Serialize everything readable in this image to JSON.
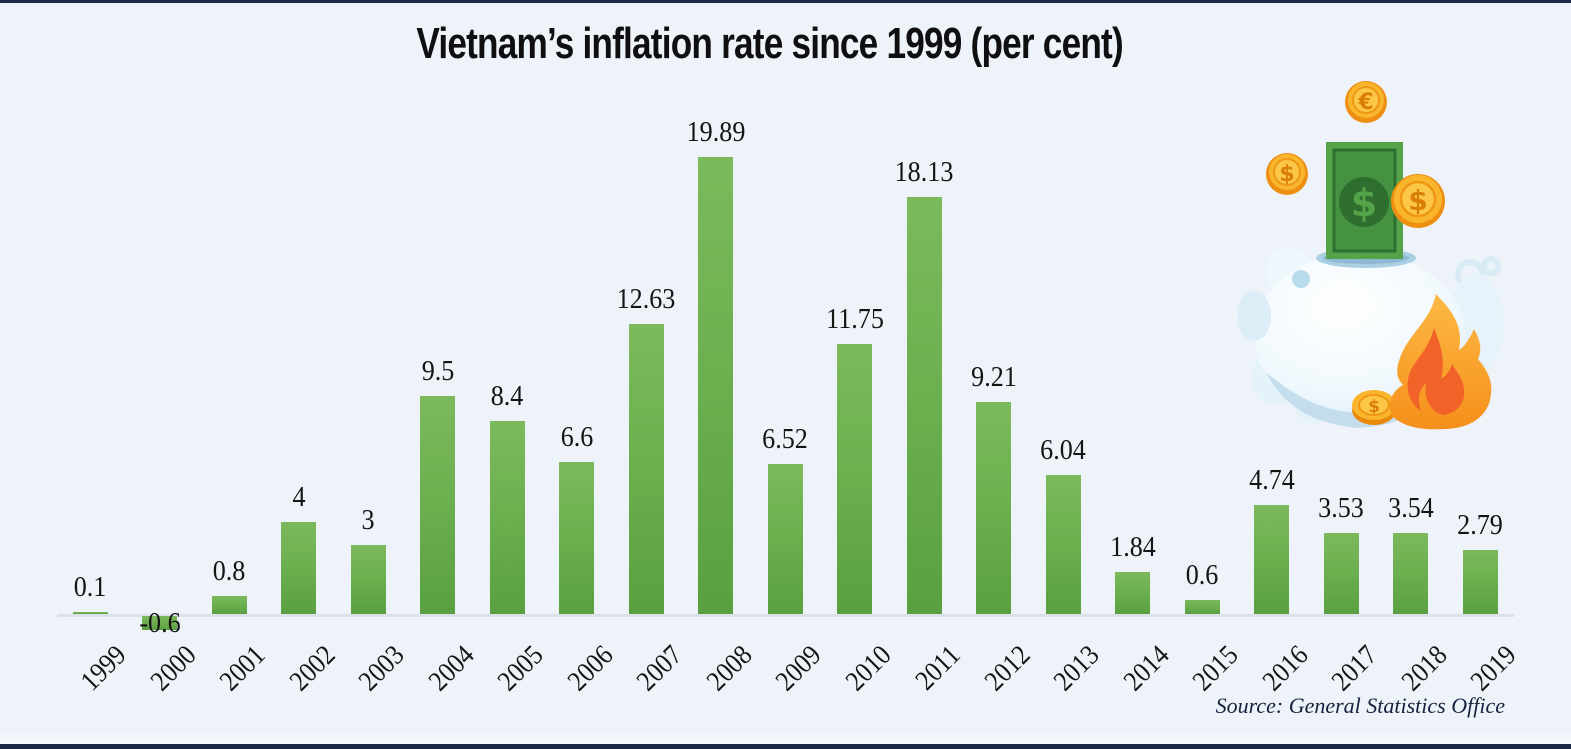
{
  "page": {
    "background": "#eef2f9",
    "frame_color": "#1b2946"
  },
  "chart_data": {
    "type": "bar",
    "title": "Vietnam’s inflation rate since 1999 (per cent)",
    "categories": [
      "1999",
      "2000",
      "2001",
      "2002",
      "2003",
      "2004",
      "2005",
      "2006",
      "2007",
      "2008",
      "2009",
      "2010",
      "2011",
      "2012",
      "2013",
      "2014",
      "2015",
      "2016",
      "2017",
      "2018",
      "2019"
    ],
    "values": [
      0.1,
      -0.6,
      0.8,
      4,
      3,
      9.5,
      8.4,
      6.6,
      12.63,
      19.89,
      6.52,
      11.75,
      18.13,
      9.21,
      6.04,
      1.84,
      0.6,
      4.74,
      3.53,
      3.54,
      2.79
    ],
    "value_labels": [
      "0.1",
      "-0.6",
      "0.8",
      "4",
      "3",
      "9.5",
      "8.4",
      "6.6",
      "12.63",
      "19.89",
      "6.52",
      "11.75",
      "18.13",
      "9.21",
      "6.04",
      "1.84",
      "0.6",
      "4.74",
      "3.53",
      "3.54",
      "2.79"
    ],
    "xlabel": "",
    "ylabel": "",
    "ylim": [
      -1,
      21
    ],
    "grid": false,
    "legend": false,
    "bar_color_top": "#7cb95c",
    "bar_color_bottom": "#58a041",
    "axis_color": "#dbe1e9",
    "label_color": "#141414",
    "source": "Source: General Statistics Office"
  },
  "illustration": {
    "name": "piggy-bank-money-on-fire",
    "pig_color": "#eff8fd",
    "bill_color": "#54a348",
    "bill_dark": "#2e6f2f",
    "coin_color": "#f6a01e",
    "coin_face": "#fcc748",
    "flame_outer": "#f79a1e",
    "flame_inner": "#f2632a"
  }
}
